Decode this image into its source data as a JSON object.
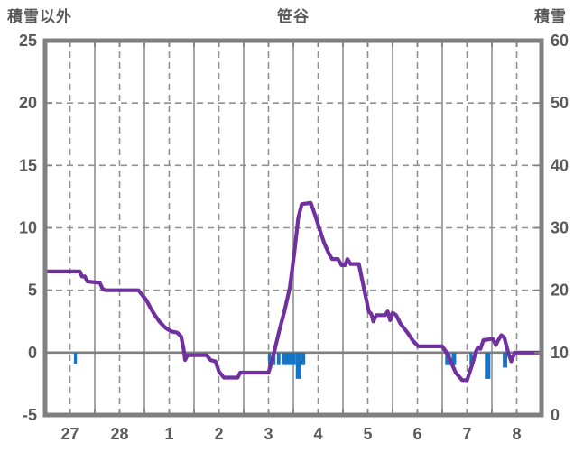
{
  "header": {
    "left_axis_title": "積雪以外",
    "chart_title": "笹谷",
    "right_axis_title": "積雪"
  },
  "chart_data": {
    "type": "line",
    "title": "笹谷",
    "left_axis": {
      "label": "積雪以外",
      "min": -5,
      "max": 25,
      "ticks": [
        25,
        20,
        15,
        10,
        5,
        0,
        -5
      ],
      "grid_dashed": [
        20,
        15,
        10,
        5
      ],
      "zero_line": 0
    },
    "right_axis": {
      "label": "積雪",
      "min": 0,
      "max": 60,
      "ticks": [
        60,
        50,
        40,
        30,
        20,
        10,
        0
      ]
    },
    "x_axis": {
      "labels": [
        "27",
        "28",
        "1",
        "2",
        "3",
        "4",
        "5",
        "6",
        "7",
        "8"
      ],
      "total_days": 10,
      "minor_tick_step_days": 0.5
    },
    "colors": {
      "line": "#7030a0",
      "bars": "#1773c4",
      "grid": "#8f8f8f",
      "border": "#808080",
      "zero_line": "#808080",
      "text": "#595959"
    },
    "series": [
      {
        "name": "non-snow-value-line",
        "kind": "line",
        "axis": "left",
        "points": [
          [
            0,
            6.5
          ],
          [
            0.7,
            6.5
          ],
          [
            0.74,
            6.1
          ],
          [
            0.8,
            6.1
          ],
          [
            0.85,
            5.7
          ],
          [
            1.1,
            5.6
          ],
          [
            1.16,
            5.1
          ],
          [
            1.22,
            5.0
          ],
          [
            1.88,
            5.0
          ],
          [
            1.96,
            4.6
          ],
          [
            2.04,
            4.2
          ],
          [
            2.12,
            3.6
          ],
          [
            2.21,
            3.0
          ],
          [
            2.3,
            2.5
          ],
          [
            2.42,
            2.0
          ],
          [
            2.54,
            1.7
          ],
          [
            2.66,
            1.6
          ],
          [
            2.74,
            1.3
          ],
          [
            2.79,
            0.3
          ],
          [
            2.82,
            -0.6
          ],
          [
            2.87,
            -0.2
          ],
          [
            3.25,
            -0.2
          ],
          [
            3.33,
            -0.6
          ],
          [
            3.43,
            -0.7
          ],
          [
            3.5,
            -1.5
          ],
          [
            3.6,
            -2.0
          ],
          [
            3.88,
            -2.0
          ],
          [
            3.93,
            -1.6
          ],
          [
            4.5,
            -1.6
          ],
          [
            4.56,
            -0.8
          ],
          [
            4.63,
            0.3
          ],
          [
            4.72,
            1.8
          ],
          [
            4.82,
            3.3
          ],
          [
            4.93,
            5.2
          ],
          [
            5.02,
            8.0
          ],
          [
            5.1,
            10.8
          ],
          [
            5.17,
            11.9
          ],
          [
            5.35,
            12.0
          ],
          [
            5.44,
            11.0
          ],
          [
            5.52,
            10.0
          ],
          [
            5.62,
            8.8
          ],
          [
            5.72,
            7.9
          ],
          [
            5.78,
            7.5
          ],
          [
            5.9,
            7.5
          ],
          [
            5.97,
            7.0
          ],
          [
            6.04,
            7.0
          ],
          [
            6.09,
            7.5
          ],
          [
            6.15,
            7.1
          ],
          [
            6.32,
            7.1
          ],
          [
            6.42,
            5.2
          ],
          [
            6.52,
            3.3
          ],
          [
            6.57,
            3.1
          ],
          [
            6.61,
            2.5
          ],
          [
            6.67,
            3.0
          ],
          [
            6.85,
            3.0
          ],
          [
            6.9,
            3.3
          ],
          [
            6.95,
            2.6
          ],
          [
            7.0,
            3.2
          ],
          [
            7.07,
            3.0
          ],
          [
            7.16,
            2.3
          ],
          [
            7.3,
            1.6
          ],
          [
            7.42,
            0.9
          ],
          [
            7.52,
            0.5
          ],
          [
            8.0,
            0.5
          ],
          [
            8.07,
            0.1
          ],
          [
            8.14,
            -0.4
          ],
          [
            8.27,
            -1.6
          ],
          [
            8.4,
            -2.2
          ],
          [
            8.5,
            -2.2
          ],
          [
            8.6,
            -1.0
          ],
          [
            8.68,
            0.1
          ],
          [
            8.72,
            0.4
          ],
          [
            8.77,
            0.3
          ],
          [
            8.83,
            1.0
          ],
          [
            9.02,
            1.1
          ],
          [
            9.08,
            0.6
          ],
          [
            9.13,
            1.0
          ],
          [
            9.19,
            1.4
          ],
          [
            9.25,
            1.2
          ],
          [
            9.33,
            0.0
          ],
          [
            9.39,
            -0.7
          ],
          [
            9.46,
            0.0
          ],
          [
            10,
            0.0
          ]
        ]
      },
      {
        "name": "below-zero-bars",
        "kind": "bars_from_zero",
        "axis": "left",
        "bars": [
          [
            0.58,
            0.64,
            -0.9
          ],
          [
            4.49,
            4.55,
            -1.0
          ],
          [
            4.58,
            4.64,
            -1.0
          ],
          [
            4.67,
            4.74,
            -1.0
          ],
          [
            4.77,
            5.05,
            -1.0
          ],
          [
            5.05,
            5.16,
            -2.1
          ],
          [
            5.16,
            5.24,
            -1.0
          ],
          [
            8.06,
            8.17,
            -1.0
          ],
          [
            8.19,
            8.28,
            -1.0
          ],
          [
            8.55,
            8.61,
            -1.0
          ],
          [
            8.86,
            8.97,
            -2.1
          ],
          [
            9.22,
            9.31,
            -1.2
          ]
        ]
      }
    ]
  }
}
